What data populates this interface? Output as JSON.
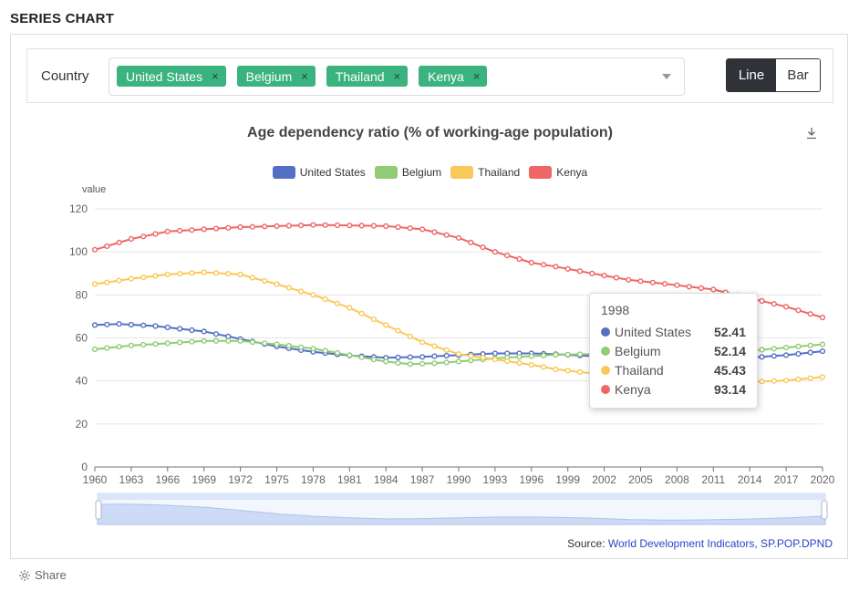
{
  "section_title": "SERIES CHART",
  "filter": {
    "label": "Country",
    "tags": [
      "United States",
      "Belgium",
      "Thailand",
      "Kenya"
    ],
    "remove_glyph": "×"
  },
  "toggle": {
    "line_label": "Line",
    "bar_label": "Bar",
    "active": "Line"
  },
  "icons": {
    "download": "download-icon",
    "share": "gear-icon",
    "dropdown": "chevron-down-icon"
  },
  "tooltip": {
    "title": "1998",
    "rows": [
      {
        "name": "United States",
        "value": "52.41"
      },
      {
        "name": "Belgium",
        "value": "52.14"
      },
      {
        "name": "Thailand",
        "value": "45.43"
      },
      {
        "name": "Kenya",
        "value": "93.14"
      }
    ]
  },
  "source": {
    "prefix": "Source: ",
    "link_text": "World Development Indicators, SP.POP.DPND"
  },
  "share_label": "Share",
  "chart_data": {
    "type": "line",
    "title": "Age dependency ratio (% of working-age population)",
    "ylabel": "value",
    "xlabel": "",
    "ylim": [
      0,
      120
    ],
    "yticks": [
      0,
      20,
      40,
      60,
      80,
      100,
      120
    ],
    "xlim": [
      1960,
      2020
    ],
    "xticks": [
      1960,
      1963,
      1966,
      1969,
      1972,
      1975,
      1978,
      1981,
      1984,
      1987,
      1990,
      1993,
      1996,
      1999,
      2002,
      2005,
      2008,
      2011,
      2014,
      2017,
      2020
    ],
    "grid": true,
    "legend_position": "top",
    "series": [
      {
        "name": "United States",
        "color": "#5470c6",
        "knots": [
          [
            1960,
            66
          ],
          [
            1962,
            66.5
          ],
          [
            1965,
            65.5
          ],
          [
            1969,
            63
          ],
          [
            1972,
            59.5
          ],
          [
            1975,
            56
          ],
          [
            1978,
            53.5
          ],
          [
            1981,
            51.8
          ],
          [
            1984,
            50.8
          ],
          [
            1987,
            51.2
          ],
          [
            1990,
            52
          ],
          [
            1993,
            52.8
          ],
          [
            1996,
            52.8
          ],
          [
            1998,
            52.41
          ],
          [
            2001,
            51.5
          ],
          [
            2004,
            50
          ],
          [
            2008,
            49.5
          ],
          [
            2011,
            50
          ],
          [
            2014,
            50.8
          ],
          [
            2017,
            52
          ],
          [
            2020,
            53.8
          ]
        ]
      },
      {
        "name": "Belgium",
        "color": "#91cc75",
        "knots": [
          [
            1960,
            54.7
          ],
          [
            1963,
            56.5
          ],
          [
            1966,
            57.5
          ],
          [
            1969,
            58.6
          ],
          [
            1972,
            58.6
          ],
          [
            1975,
            57
          ],
          [
            1978,
            55
          ],
          [
            1981,
            52
          ],
          [
            1984,
            49
          ],
          [
            1986,
            47.8
          ],
          [
            1988,
            48.2
          ],
          [
            1990,
            49
          ],
          [
            1993,
            50.5
          ],
          [
            1996,
            51.5
          ],
          [
            1998,
            52.14
          ],
          [
            2001,
            52.5
          ],
          [
            2004,
            52
          ],
          [
            2008,
            51.5
          ],
          [
            2011,
            52
          ],
          [
            2014,
            54
          ],
          [
            2017,
            55.5
          ],
          [
            2020,
            57
          ]
        ]
      },
      {
        "name": "Thailand",
        "color": "#fac858",
        "knots": [
          [
            1960,
            85
          ],
          [
            1963,
            87.5
          ],
          [
            1966,
            89.5
          ],
          [
            1969,
            90.5
          ],
          [
            1972,
            89.5
          ],
          [
            1975,
            85
          ],
          [
            1978,
            80
          ],
          [
            1981,
            74
          ],
          [
            1984,
            66
          ],
          [
            1987,
            58
          ],
          [
            1990,
            52.5
          ],
          [
            1993,
            50
          ],
          [
            1996,
            47.5
          ],
          [
            1998,
            45.43
          ],
          [
            2001,
            43.5
          ],
          [
            2004,
            42
          ],
          [
            2008,
            40
          ],
          [
            2011,
            39.5
          ],
          [
            2014,
            39.5
          ],
          [
            2017,
            40.2
          ],
          [
            2020,
            41.8
          ]
        ]
      },
      {
        "name": "Kenya",
        "color": "#ee6666",
        "knots": [
          [
            1960,
            101
          ],
          [
            1963,
            106
          ],
          [
            1966,
            109.5
          ],
          [
            1969,
            110.5
          ],
          [
            1972,
            111.5
          ],
          [
            1975,
            112
          ],
          [
            1978,
            112.5
          ],
          [
            1981,
            112.3
          ],
          [
            1984,
            112
          ],
          [
            1987,
            110.5
          ],
          [
            1990,
            106.5
          ],
          [
            1993,
            100
          ],
          [
            1996,
            95
          ],
          [
            1998,
            93.14
          ],
          [
            2001,
            90
          ],
          [
            2004,
            87
          ],
          [
            2008,
            84.5
          ],
          [
            2011,
            82.5
          ],
          [
            2014,
            78.5
          ],
          [
            2017,
            74.5
          ],
          [
            2020,
            69.5
          ]
        ]
      }
    ]
  }
}
